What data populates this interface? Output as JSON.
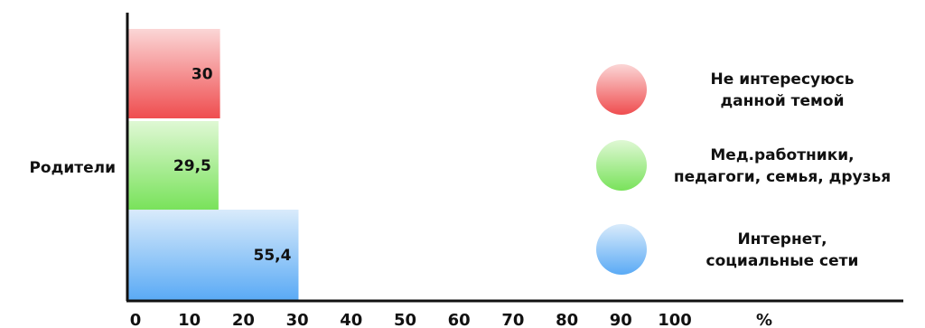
{
  "chart_data": {
    "type": "bar",
    "orientation": "horizontal",
    "stacked_as_grouped_segments": true,
    "categories": [
      "Родители"
    ],
    "unit_label": "%",
    "xlim": [
      0,
      100
    ],
    "x_ticks": [
      "0",
      "10",
      "20",
      "30",
      "40",
      "50",
      "60",
      "70",
      "80",
      "90",
      "100"
    ],
    "series": [
      {
        "name": "Не интересуюсь данной темой",
        "legend_lines": [
          "Не интересуюсь",
          "данной темой"
        ],
        "values": [
          30
        ],
        "label": "30",
        "color": "#ef4d4f",
        "color_light": "#fbd6d6"
      },
      {
        "name": "Мед.работники, педагоги, семья, друзья",
        "legend_lines": [
          "Мед.работники,",
          "педагоги, семья, друзья"
        ],
        "values": [
          29.5
        ],
        "label": "29,5",
        "color": "#79e25b",
        "color_light": "#dff8d4"
      },
      {
        "name": "Интернет, социальные сети",
        "legend_lines": [
          "Интернет,",
          "социальные сети"
        ],
        "values": [
          55.4
        ],
        "label": "55,4",
        "color": "#5aaaf5",
        "color_light": "#d9ebfb"
      }
    ],
    "legend_position": "right",
    "grid": false
  }
}
